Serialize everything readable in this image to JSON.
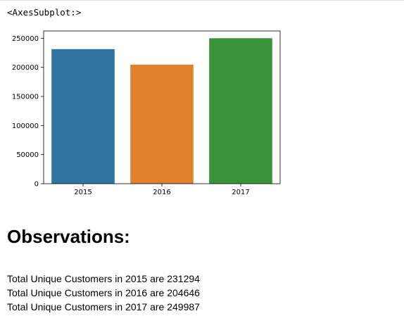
{
  "output": {
    "repr": "<AxesSubplot:>"
  },
  "chart_data": {
    "type": "bar",
    "categories": [
      "2015",
      "2016",
      "2017"
    ],
    "values": [
      231294,
      204646,
      249987
    ],
    "colors": [
      "#3274a1",
      "#e1812c",
      "#3a923a"
    ],
    "title": "",
    "xlabel": "",
    "ylabel": "",
    "ylim": [
      0,
      262486
    ],
    "yticks": [
      0,
      50000,
      100000,
      150000,
      200000,
      250000
    ],
    "grid": false,
    "legend": "none"
  },
  "observations": {
    "heading": "Observations:",
    "lines": [
      "Total Unique Customers in 2015 are 231294",
      "Total Unique Customers in 2016 are 204646",
      "Total Unique Customers in 2017 are 249987"
    ]
  }
}
